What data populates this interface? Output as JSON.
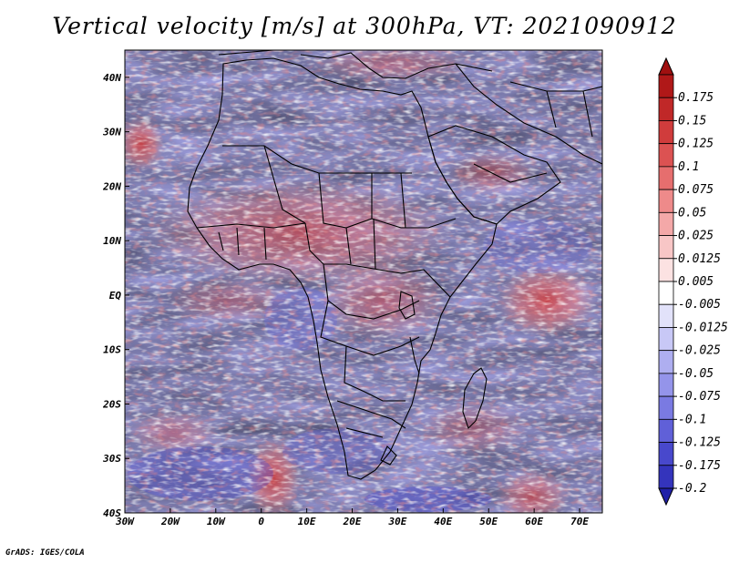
{
  "title": "Vertical velocity [m/s] at 300hPa, VT: 2021090912",
  "credit": "GrADS: IGES/COLA",
  "map": {
    "lon_range": [
      -30,
      75
    ],
    "lat_range": [
      -40,
      45
    ],
    "lat_ticks": [
      {
        "value": 40,
        "label": "40N"
      },
      {
        "value": 30,
        "label": "30N"
      },
      {
        "value": 20,
        "label": "20N"
      },
      {
        "value": 10,
        "label": "10N"
      },
      {
        "value": 0,
        "label": "EQ"
      },
      {
        "value": -10,
        "label": "10S"
      },
      {
        "value": -20,
        "label": "20S"
      },
      {
        "value": -30,
        "label": "30S"
      },
      {
        "value": -40,
        "label": "40S"
      }
    ],
    "lon_ticks": [
      {
        "value": -30,
        "label": "30W"
      },
      {
        "value": -20,
        "label": "20W"
      },
      {
        "value": -10,
        "label": "10W"
      },
      {
        "value": 0,
        "label": "0"
      },
      {
        "value": 10,
        "label": "10E"
      },
      {
        "value": 20,
        "label": "20E"
      },
      {
        "value": 30,
        "label": "30E"
      },
      {
        "value": 40,
        "label": "40E"
      },
      {
        "value": 50,
        "label": "50E"
      },
      {
        "value": 60,
        "label": "60E"
      },
      {
        "value": 70,
        "label": "70E"
      }
    ]
  },
  "colorbar": {
    "levels": [
      {
        "label": "0.175",
        "color": "#b01818"
      },
      {
        "label": "0.15",
        "color": "#c02828"
      },
      {
        "label": "0.125",
        "color": "#d03c3c"
      },
      {
        "label": "0.1",
        "color": "#dc5252"
      },
      {
        "label": "0.075",
        "color": "#e66e6e"
      },
      {
        "label": "0.05",
        "color": "#ee8a8a"
      },
      {
        "label": "0.025",
        "color": "#f4a8a8"
      },
      {
        "label": "0.0125",
        "color": "#f8c6c6"
      },
      {
        "label": "0.005",
        "color": "#fce2e2"
      },
      {
        "label": "-0.005",
        "color": "#ffffff"
      },
      {
        "label": "-0.0125",
        "color": "#e2e2fa"
      },
      {
        "label": "-0.025",
        "color": "#c8c8f6"
      },
      {
        "label": "-0.05",
        "color": "#aeaef0"
      },
      {
        "label": "-0.075",
        "color": "#9494ea"
      },
      {
        "label": "-0.1",
        "color": "#7a7ae2"
      },
      {
        "label": "-0.125",
        "color": "#6060d8"
      },
      {
        "label": "-0.175",
        "color": "#4848cc"
      },
      {
        "label": "-0.2",
        "color": "#3434bc"
      }
    ],
    "top_arrow_color": "#a01010",
    "bottom_arrow_color": "#2020a8"
  }
}
